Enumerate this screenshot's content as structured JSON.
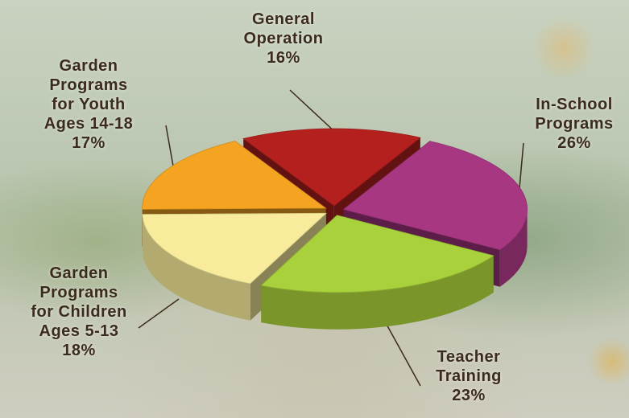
{
  "chart_data": {
    "type": "pie",
    "categories": [
      "General\nOperation",
      "In-School\nPrograms",
      "Teacher\nTraining",
      "Garden\nPrograms\nfor Children\nAges 5-13",
      "Garden\nPrograms\nfor Youth\nAges 14-18"
    ],
    "values": [
      16,
      26,
      23,
      18,
      17
    ],
    "value_labels": [
      "16%",
      "26%",
      "23%",
      "18%",
      "17%"
    ],
    "colors": [
      "#b3201e",
      "#a83782",
      "#a9d13c",
      "#f8ec9c",
      "#f4a421"
    ]
  }
}
